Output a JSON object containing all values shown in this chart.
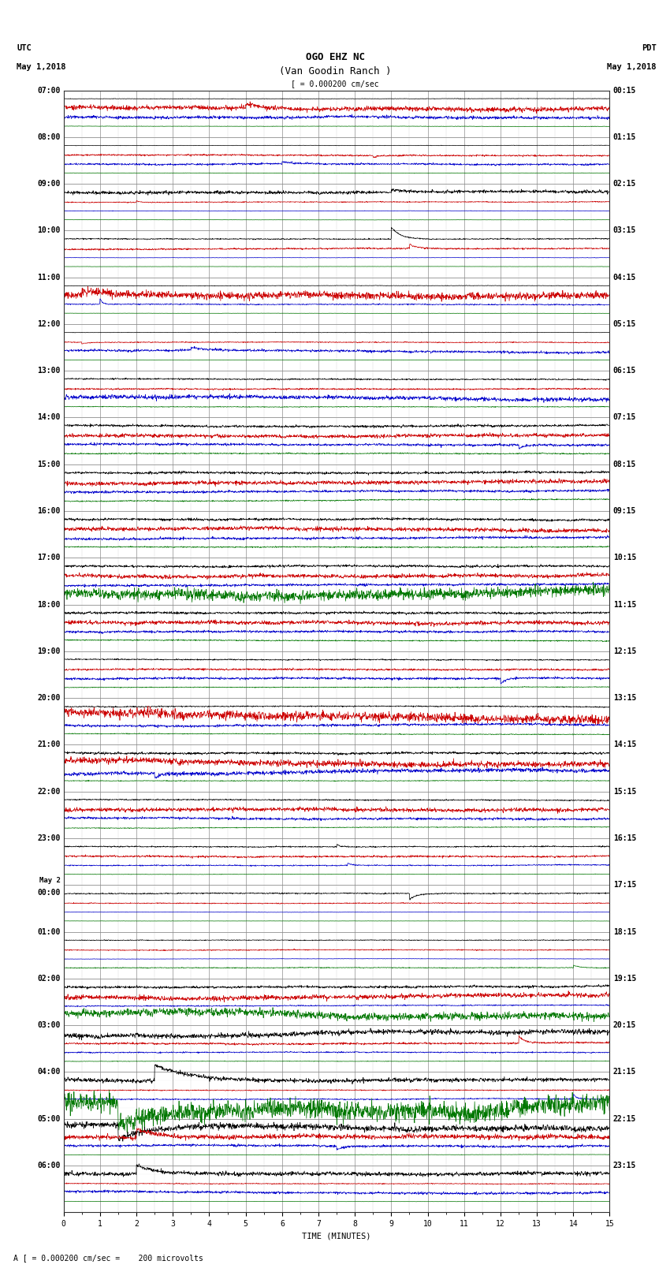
{
  "title_line1": "OGO EHZ NC",
  "title_line2": "(Van Goodin Ranch )",
  "scale_text": "[ = 0.000200 cm/sec",
  "bottom_note": "A [ = 0.000200 cm/sec =    200 microvolts",
  "utc_label": "UTC",
  "utc_date": "May 1,2018",
  "pdt_label": "PDT",
  "pdt_date": "May 1,2018",
  "xlabel": "TIME (MINUTES)",
  "xlim": [
    0,
    15
  ],
  "bg_color": "#ffffff",
  "grid_color": "#555555",
  "trace_colors": [
    "#000000",
    "#cc0000",
    "#0000cc",
    "#007700"
  ],
  "utc_times": [
    "07:00",
    "08:00",
    "09:00",
    "10:00",
    "11:00",
    "12:00",
    "13:00",
    "14:00",
    "15:00",
    "16:00",
    "17:00",
    "18:00",
    "19:00",
    "20:00",
    "21:00",
    "22:00",
    "23:00",
    "May 2\n00:00",
    "01:00",
    "02:00",
    "03:00",
    "04:00",
    "05:00",
    "06:00"
  ],
  "pdt_times": [
    "00:15",
    "01:15",
    "02:15",
    "03:15",
    "04:15",
    "05:15",
    "06:15",
    "07:15",
    "08:15",
    "09:15",
    "10:15",
    "11:15",
    "12:15",
    "13:15",
    "14:15",
    "15:15",
    "16:15",
    "17:15",
    "18:15",
    "19:15",
    "20:15",
    "21:15",
    "22:15",
    "23:15"
  ],
  "n_hours": 24,
  "traces_per_hour": 4,
  "fig_width": 8.5,
  "fig_height": 16.13,
  "dpi": 100,
  "font_size_title": 9,
  "font_size_labels": 7.5,
  "font_size_ticks": 7
}
